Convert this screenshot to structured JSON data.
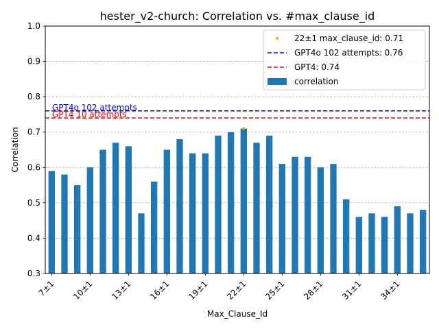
{
  "chart_data": {
    "type": "bar",
    "title": "hester_v2-church: Correlation vs. #max_clause_id",
    "xlabel": "Max_Clause_Id",
    "ylabel": "Correlation",
    "ylim": [
      0.3,
      1.0
    ],
    "yticks": [
      "0.3",
      "0.4",
      "0.5",
      "0.6",
      "0.7",
      "0.8",
      "0.9",
      "1.0"
    ],
    "grid": "horizontal dashed",
    "legend_position": "top-right",
    "categories": [
      "7±1",
      "8±1",
      "9±1",
      "10±1",
      "11±1",
      "12±1",
      "13±1",
      "14±1",
      "15±1",
      "16±1",
      "17±1",
      "18±1",
      "19±1",
      "20±1",
      "21±1",
      "22±1",
      "23±1",
      "24±1",
      "25±1",
      "26±1",
      "27±1",
      "28±1",
      "29±1",
      "30±1",
      "31±1",
      "32±1",
      "33±1",
      "34±1",
      "35±1",
      "36±1"
    ],
    "xtick_labels": [
      "7±1",
      "10±1",
      "13±1",
      "16±1",
      "19±1",
      "22±1",
      "25±1",
      "28±1",
      "31±1",
      "34±1"
    ],
    "series": [
      {
        "name": "correlation",
        "color": "#1f77b4",
        "values": [
          0.59,
          0.58,
          0.55,
          0.6,
          0.65,
          0.67,
          0.66,
          0.47,
          0.56,
          0.65,
          0.68,
          0.64,
          0.64,
          0.69,
          0.7,
          0.71,
          0.67,
          0.69,
          0.61,
          0.63,
          0.63,
          0.6,
          0.61,
          0.51,
          0.46,
          0.47,
          0.46,
          0.49,
          0.47,
          0.48
        ]
      }
    ],
    "highlight_point": {
      "legend_label": "22±1 max_clause_id: 0.71",
      "category": "22±1",
      "value": 0.71,
      "color": "#ffa500"
    },
    "reference_lines": [
      {
        "legend_label": "GPT4o 102 attempts: 0.76",
        "annotation": "GPT4o 102 attempts",
        "value": 0.76,
        "color": "#0000ff"
      },
      {
        "legend_label": "GPT4: 0.74",
        "annotation": "GPT4 10 attempts",
        "value": 0.74,
        "color": "#ff0000"
      }
    ]
  }
}
